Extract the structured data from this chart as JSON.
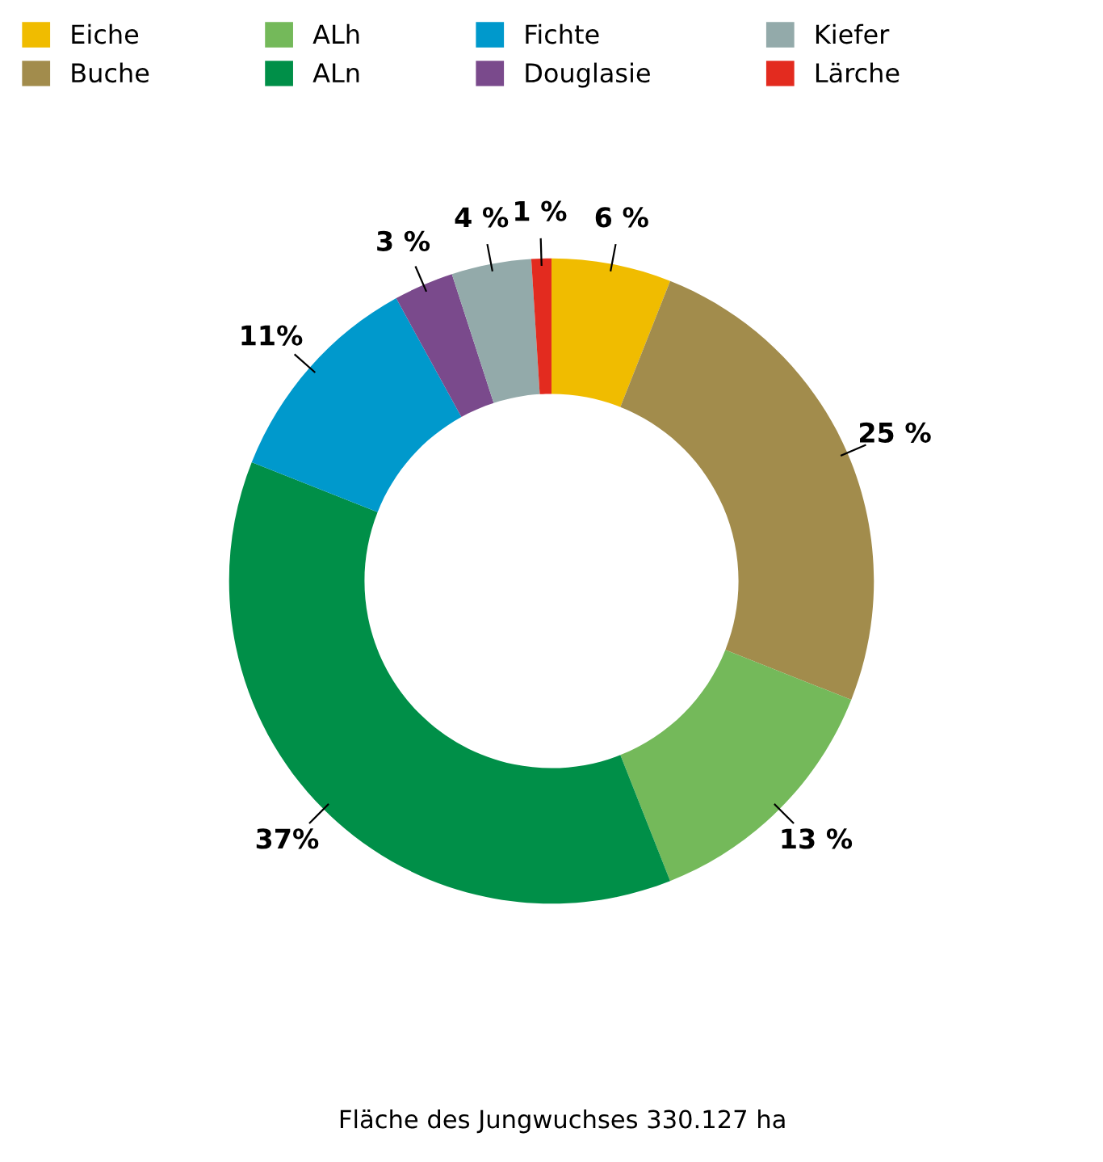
{
  "chart_data": {
    "type": "donut",
    "categories": [
      "Eiche",
      "Buche",
      "ALh",
      "ALn",
      "Fichte",
      "Douglasie",
      "Kiefer",
      "Lärche"
    ],
    "values": [
      6,
      25,
      13,
      37,
      11,
      3,
      4,
      1
    ],
    "colors": [
      "#f0bc00",
      "#a28c4c",
      "#74b95a",
      "#008f48",
      "#0099cc",
      "#7a4a8c",
      "#93aaaa",
      "#e32b1f"
    ],
    "value_labels": [
      "6 %",
      "25 %",
      "13 %",
      "37%",
      "11%",
      "3 %",
      "4 %",
      "1 %"
    ],
    "legend": "top",
    "annotations": [
      "Fläche des Jungwuchses 330.127 ha"
    ]
  }
}
